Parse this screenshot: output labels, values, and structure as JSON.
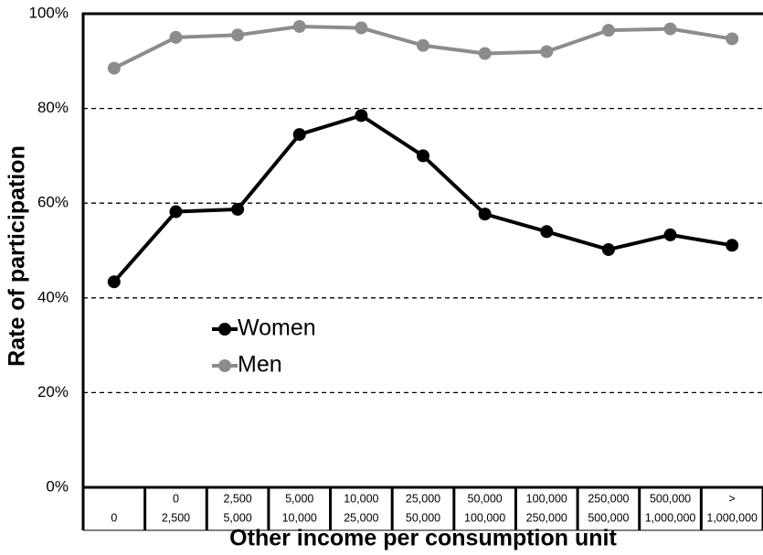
{
  "chart_data": {
    "type": "line",
    "x_label": "Other income per consumption unit",
    "y_label": "Rate of participation",
    "categories": [
      [
        "0"
      ],
      [
        "0",
        "2,500"
      ],
      [
        "2,500",
        "5,000"
      ],
      [
        "5,000",
        "10,000"
      ],
      [
        "10,000",
        "25,000"
      ],
      [
        "25,000",
        "50,000"
      ],
      [
        "50,000",
        "100,000"
      ],
      [
        "100,000",
        "250,000"
      ],
      [
        "250,000",
        "500,000"
      ],
      [
        "500,000",
        "1,000,000"
      ],
      [
        ">",
        "1,000,000"
      ]
    ],
    "series": [
      {
        "name": "Women",
        "color": "#000000",
        "values": [
          43.4,
          58.2,
          58.7,
          74.5,
          78.5,
          70,
          57.7,
          54,
          50.2,
          53.3,
          51.1
        ]
      },
      {
        "name": "Men",
        "color": "#8c8c8c",
        "values": [
          88.5,
          95,
          95.5,
          97.3,
          97,
          93.3,
          91.6,
          92,
          96.5,
          96.8,
          94.7
        ]
      }
    ],
    "ylim": [
      0,
      100
    ],
    "yticks": [
      {
        "value": 0,
        "label": "0%"
      },
      {
        "value": 20,
        "label": "20%"
      },
      {
        "value": 40,
        "label": "40%"
      },
      {
        "value": 60,
        "label": "60%"
      },
      {
        "value": 80,
        "label": "80%"
      },
      {
        "value": 100,
        "label": "100%"
      }
    ],
    "grid": true
  }
}
